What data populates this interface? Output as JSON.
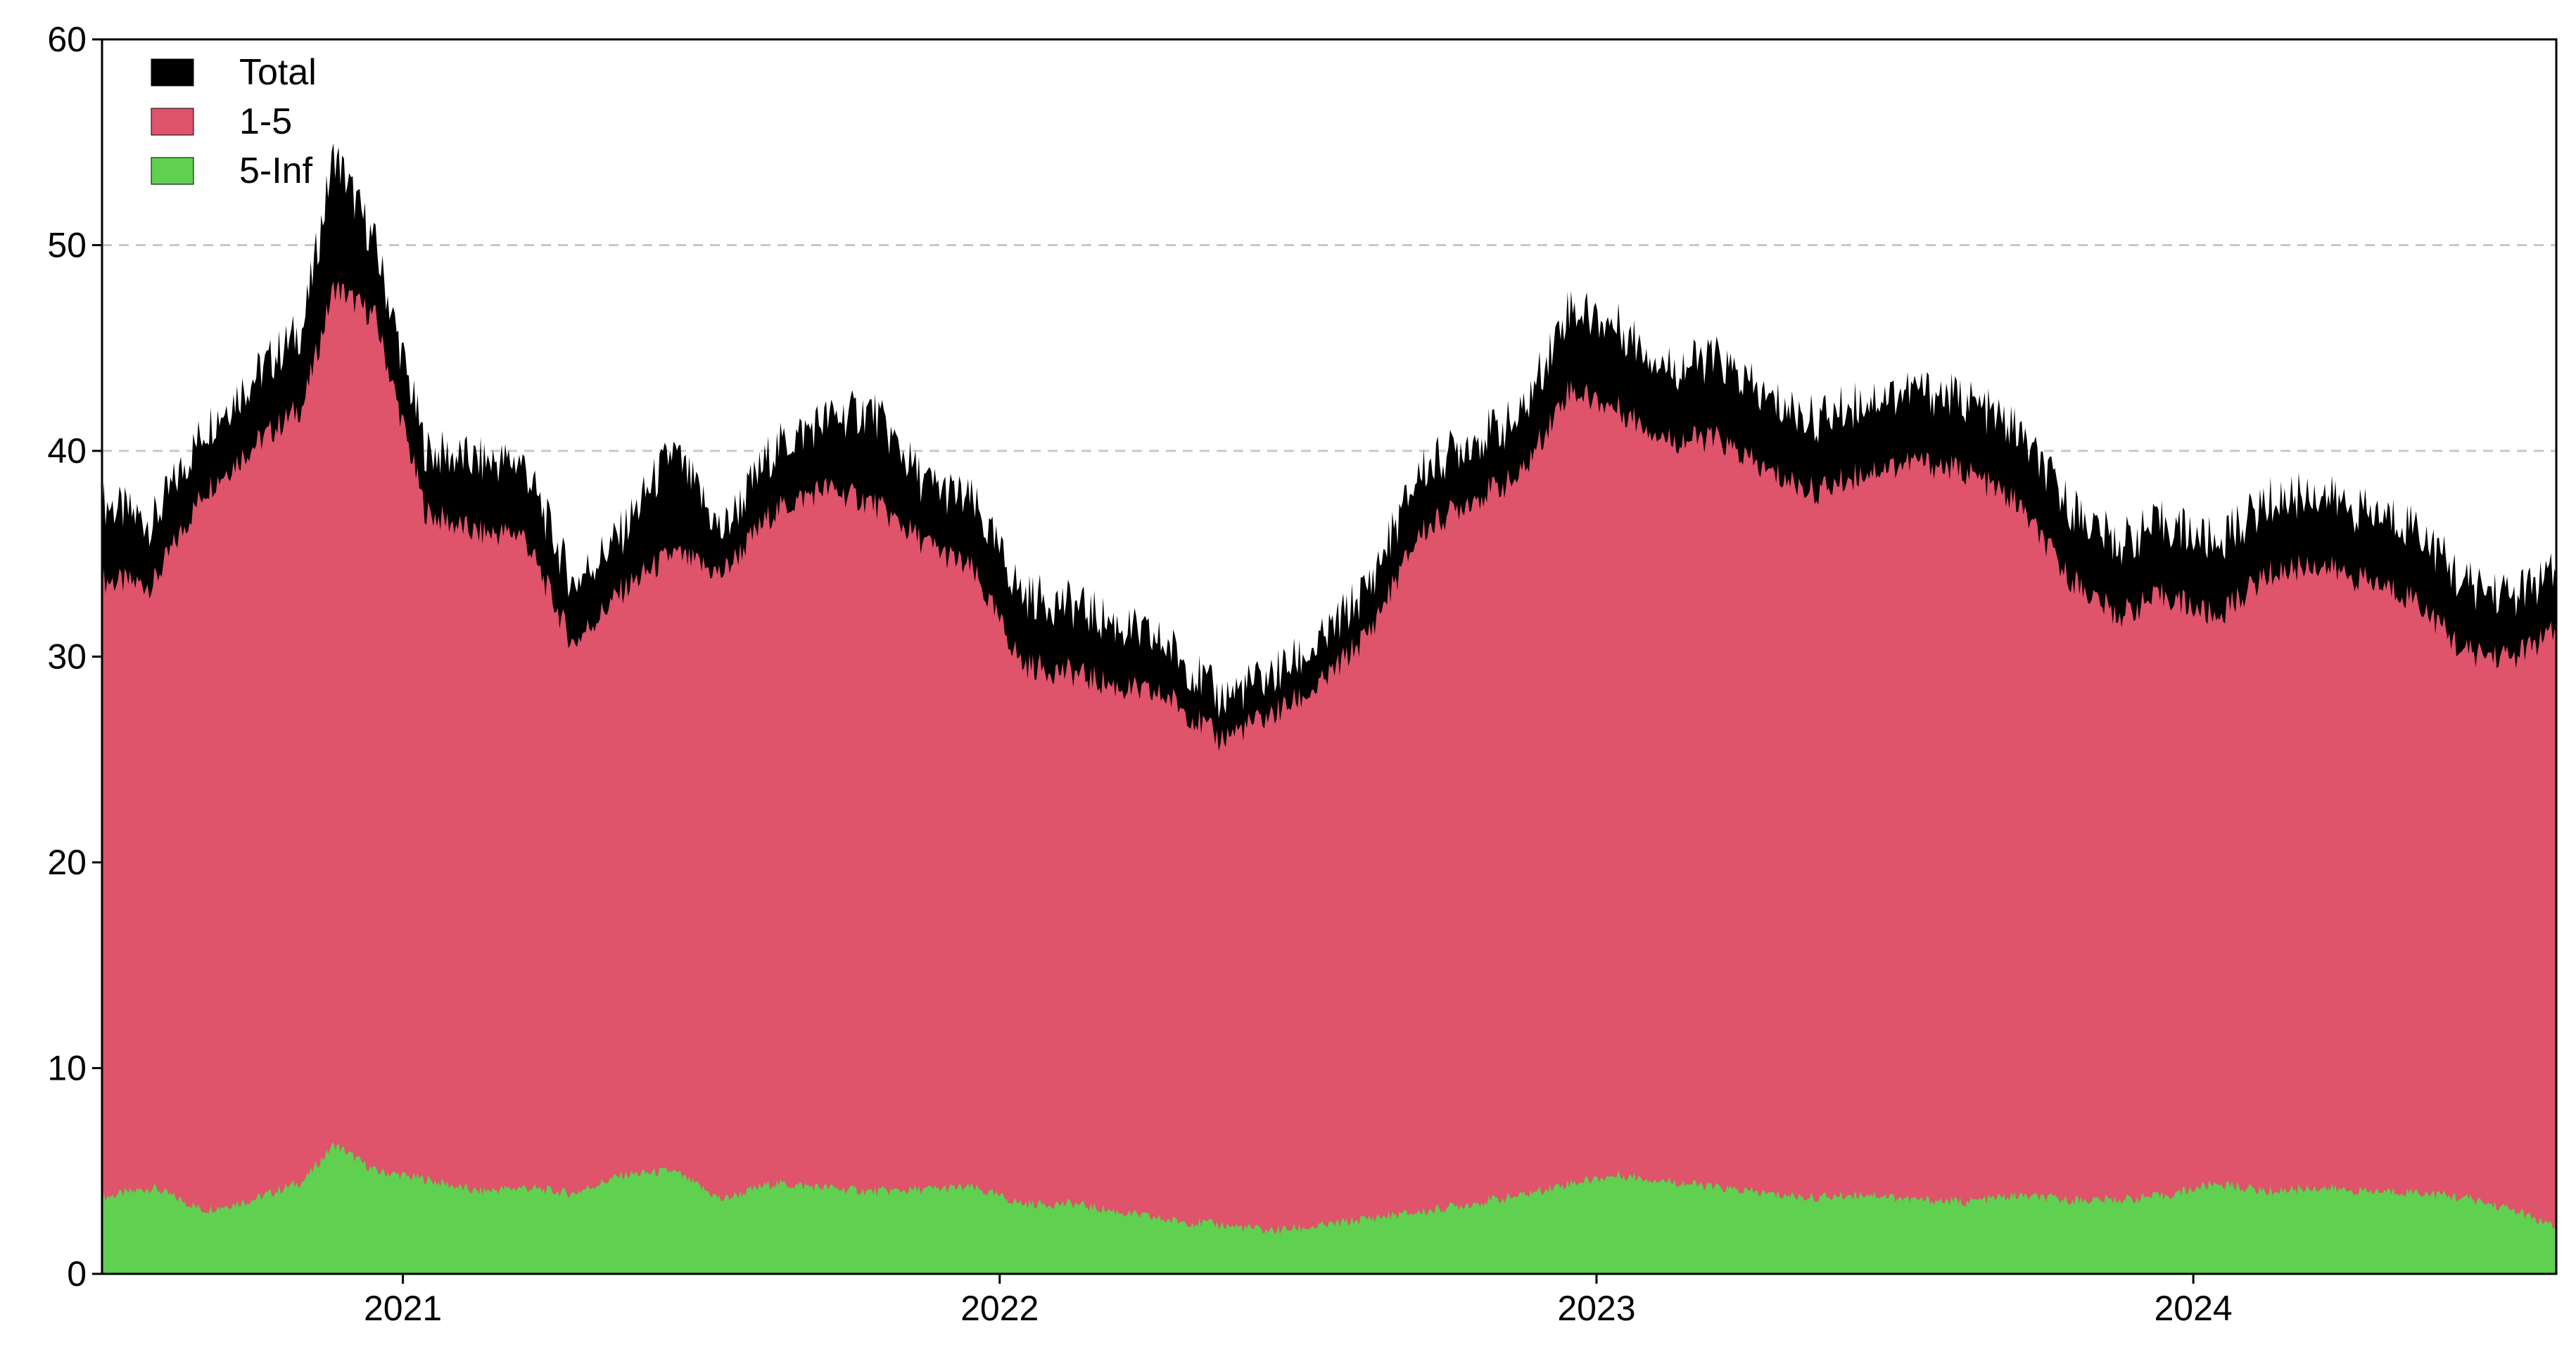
{
  "chart_data": {
    "type": "area",
    "stacked": true,
    "title": "",
    "xlabel": "",
    "ylabel": "",
    "ylim": [
      0,
      60
    ],
    "xlim": [
      "2020-07-01",
      "2024-08-10"
    ],
    "yticks": [
      0,
      10,
      20,
      30,
      40,
      50,
      60
    ],
    "xticks": [
      {
        "date": "2021-01-01",
        "label": "2021"
      },
      {
        "date": "2022-01-01",
        "label": "2022"
      },
      {
        "date": "2023-01-01",
        "label": "2023"
      },
      {
        "date": "2024-01-01",
        "label": "2024"
      }
    ],
    "grid": {
      "horizontal": true,
      "style": "dashed",
      "at": [
        40,
        50
      ]
    },
    "legend": {
      "placement": "top-left",
      "entries": [
        "Total",
        "1-5",
        "5-Inf"
      ]
    },
    "series": [
      {
        "name": "5-Inf",
        "color": "#5fd04f",
        "x": [
          "2020-07-01",
          "2020-08-01",
          "2020-09-01",
          "2020-10-01",
          "2020-11-01",
          "2020-11-20",
          "2020-12-15",
          "2021-01-15",
          "2021-02-15",
          "2021-03-15",
          "2021-04-15",
          "2021-05-15",
          "2021-06-15",
          "2021-07-15",
          "2021-08-15",
          "2021-09-15",
          "2021-10-15",
          "2021-11-15",
          "2021-12-15",
          "2022-01-15",
          "2022-02-15",
          "2022-03-15",
          "2022-04-15",
          "2022-05-15",
          "2022-06-15",
          "2022-07-15",
          "2022-08-15",
          "2022-09-15",
          "2022-10-15",
          "2022-11-15",
          "2022-12-15",
          "2023-01-15",
          "2023-02-15",
          "2023-03-15",
          "2023-04-15",
          "2023-05-15",
          "2023-06-15",
          "2023-07-15",
          "2023-08-15",
          "2023-09-15",
          "2023-10-15",
          "2023-11-15",
          "2023-12-15",
          "2024-01-15",
          "2024-02-15",
          "2024-03-15",
          "2024-04-15",
          "2024-05-15",
          "2024-06-15",
          "2024-07-15",
          "2024-08-10"
        ],
        "values": [
          3.7,
          4.2,
          3.1,
          3.6,
          4.5,
          6.3,
          5.0,
          4.6,
          4.0,
          4.2,
          3.9,
          4.8,
          5.0,
          3.6,
          4.4,
          4.2,
          4.0,
          4.1,
          4.2,
          3.4,
          3.4,
          3.0,
          2.6,
          2.4,
          2.1,
          2.3,
          2.7,
          3.0,
          3.4,
          3.8,
          4.4,
          4.8,
          4.5,
          4.2,
          3.9,
          3.7,
          3.9,
          3.6,
          3.5,
          3.8,
          3.6,
          3.6,
          3.8,
          4.4,
          4.0,
          4.2,
          4.0,
          4.0,
          3.7,
          3.1,
          2.2
        ]
      },
      {
        "name": "1-5",
        "color": "#df536b",
        "x": [
          "2020-07-01",
          "2020-08-01",
          "2020-09-01",
          "2020-10-01",
          "2020-11-01",
          "2020-11-20",
          "2020-12-15",
          "2021-01-15",
          "2021-02-15",
          "2021-03-15",
          "2021-04-15",
          "2021-05-15",
          "2021-06-15",
          "2021-07-15",
          "2021-08-15",
          "2021-09-15",
          "2021-10-15",
          "2021-11-15",
          "2021-12-15",
          "2022-01-15",
          "2022-02-15",
          "2022-03-15",
          "2022-04-15",
          "2022-05-15",
          "2022-06-15",
          "2022-07-15",
          "2022-08-15",
          "2022-09-15",
          "2022-10-15",
          "2022-11-15",
          "2022-12-15",
          "2023-01-15",
          "2023-02-15",
          "2023-03-15",
          "2023-04-15",
          "2023-05-15",
          "2023-06-15",
          "2023-07-15",
          "2023-08-15",
          "2023-09-15",
          "2023-10-15",
          "2023-11-15",
          "2023-12-15",
          "2024-01-15",
          "2024-02-15",
          "2024-03-15",
          "2024-04-15",
          "2024-05-15",
          "2024-06-15",
          "2024-07-15",
          "2024-08-10"
        ],
        "values": [
          30.0,
          29.3,
          34.9,
          36.6,
          37.7,
          41.7,
          41.5,
          32.4,
          32.0,
          31.8,
          26.7,
          28.4,
          30.0,
          30.4,
          32.6,
          34.0,
          33.5,
          31.5,
          30.0,
          26.2,
          25.8,
          25.5,
          25.4,
          23.6,
          25.0,
          26.2,
          28.5,
          33.0,
          34.2,
          34.9,
          38.6,
          37.2,
          36.0,
          36.4,
          35.1,
          34.3,
          35.1,
          35.9,
          35.5,
          33.7,
          30.4,
          28.4,
          29.2,
          27.5,
          30.0,
          30.3,
          29.7,
          28.9,
          26.5,
          26.9,
          29.0
        ]
      },
      {
        "name": "Total",
        "color": "#000000",
        "x": [
          "2020-07-01",
          "2020-08-01",
          "2020-09-01",
          "2020-10-01",
          "2020-11-01",
          "2020-11-20",
          "2020-12-15",
          "2021-01-15",
          "2021-02-15",
          "2021-03-15",
          "2021-04-15",
          "2021-05-15",
          "2021-06-15",
          "2021-07-15",
          "2021-08-15",
          "2021-09-15",
          "2021-10-15",
          "2021-11-15",
          "2021-12-15",
          "2022-01-15",
          "2022-02-15",
          "2022-03-15",
          "2022-04-15",
          "2022-05-15",
          "2022-06-15",
          "2022-07-15",
          "2022-08-15",
          "2022-09-15",
          "2022-10-15",
          "2022-11-15",
          "2022-12-15",
          "2023-01-15",
          "2023-02-15",
          "2023-03-15",
          "2023-04-15",
          "2023-05-15",
          "2023-06-15",
          "2023-07-15",
          "2023-08-15",
          "2023-09-15",
          "2023-10-15",
          "2023-11-15",
          "2023-12-15",
          "2024-01-15",
          "2024-02-15",
          "2024-03-15",
          "2024-04-15",
          "2024-05-15",
          "2024-06-15",
          "2024-07-15",
          "2024-08-10"
        ],
        "values": [
          37.5,
          36.5,
          41.0,
          43.5,
          46.0,
          54.5,
          50.0,
          40.0,
          39.5,
          39.5,
          33.5,
          36.0,
          40.0,
          36.0,
          40.0,
          41.5,
          42.0,
          38.5,
          37.5,
          33.0,
          32.5,
          31.5,
          30.5,
          28.0,
          29.0,
          30.5,
          33.5,
          39.0,
          40.5,
          41.5,
          47.0,
          46.0,
          44.0,
          44.5,
          42.5,
          41.5,
          42.5,
          43.0,
          42.5,
          41.0,
          37.5,
          35.5,
          36.5,
          35.5,
          37.5,
          38.0,
          37.0,
          36.5,
          33.5,
          33.0,
          34.0
        ]
      }
    ]
  },
  "axes": {
    "y_tick_labels": [
      "0",
      "10",
      "20",
      "30",
      "40",
      "50",
      "60"
    ],
    "x_tick_labels": [
      "2021",
      "2022",
      "2023",
      "2024"
    ]
  },
  "legend": {
    "items": [
      {
        "label": "Total",
        "color": "#000000"
      },
      {
        "label": "1-5",
        "color": "#df536b"
      },
      {
        "label": "5-Inf",
        "color": "#5fd04f"
      }
    ]
  }
}
